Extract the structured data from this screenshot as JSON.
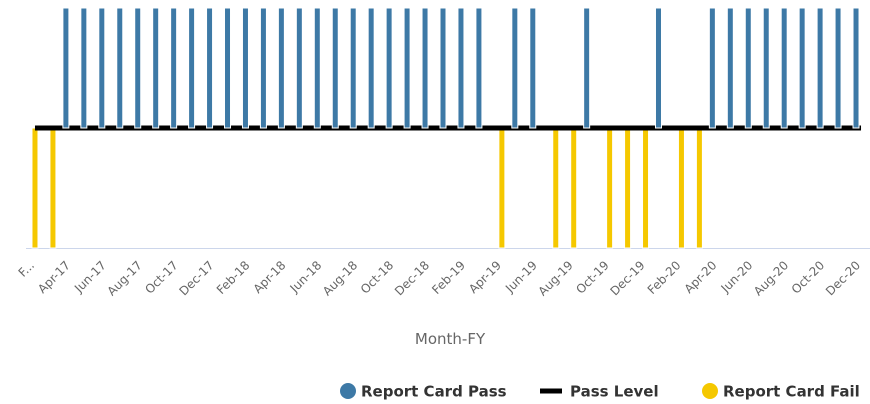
{
  "chart_data": {
    "type": "bar",
    "x_label": "Month-FY",
    "categories": [
      "F...",
      null,
      "Apr-17",
      null,
      "Jun-17",
      null,
      "Aug-17",
      null,
      "Oct-17",
      null,
      "Dec-17",
      null,
      "Feb-18",
      null,
      "Apr-18",
      null,
      "Jun-18",
      null,
      "Aug-18",
      null,
      "Oct-18",
      null,
      "Dec-18",
      null,
      "Feb-19",
      null,
      "Apr-19",
      null,
      "Jun-19",
      null,
      "Aug-19",
      null,
      "Oct-19",
      null,
      "Dec-19",
      null,
      "Feb-20",
      null,
      "Apr-20",
      null,
      "Jun-20",
      null,
      "Aug-20",
      null,
      "Oct-20",
      null,
      "Dec-20"
    ],
    "ylim": [
      -1,
      1
    ],
    "series": [
      {
        "name": "Report Card Pass",
        "type": "bar",
        "color": "#3d79a6",
        "values": [
          null,
          null,
          1,
          1,
          1,
          1,
          1,
          1,
          1,
          1,
          1,
          1,
          1,
          1,
          1,
          1,
          1,
          1,
          1,
          1,
          1,
          1,
          1,
          1,
          1,
          1,
          null,
          1,
          1,
          null,
          null,
          1,
          null,
          null,
          null,
          1,
          null,
          null,
          1,
          1,
          1,
          1,
          1,
          1,
          1,
          1,
          1
        ]
      },
      {
        "name": "Pass Level",
        "type": "line",
        "color": "#000000",
        "values": [
          0,
          0,
          0,
          0,
          0,
          0,
          0,
          0,
          0,
          0,
          0,
          0,
          0,
          0,
          0,
          0,
          0,
          0,
          0,
          0,
          0,
          0,
          0,
          0,
          0,
          0,
          0,
          0,
          0,
          0,
          0,
          0,
          0,
          0,
          0,
          0,
          0,
          0,
          0,
          0,
          0,
          0,
          0,
          0,
          0,
          0,
          0
        ]
      },
      {
        "name": "Report Card Fail",
        "type": "bar",
        "color": "#f5c800",
        "values": [
          -1,
          -1,
          null,
          null,
          null,
          null,
          null,
          null,
          null,
          null,
          null,
          null,
          null,
          null,
          null,
          null,
          null,
          null,
          null,
          null,
          null,
          null,
          null,
          null,
          null,
          null,
          -1,
          null,
          null,
          -1,
          -1,
          null,
          -1,
          -1,
          -1,
          null,
          -1,
          -1,
          null,
          null,
          null,
          null,
          null,
          null,
          null,
          null,
          null
        ]
      }
    ]
  }
}
